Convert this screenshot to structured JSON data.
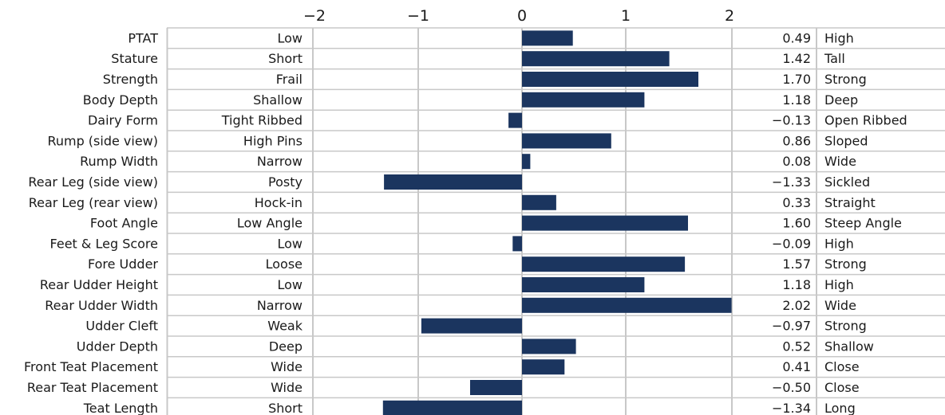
{
  "chart_data": {
    "type": "bar",
    "orientation": "horizontal",
    "xlim": [
      -2,
      2
    ],
    "x_ticks": [
      "−2",
      "−1",
      "0",
      "1",
      "2"
    ],
    "grid": true,
    "bar_color": "#1b355f",
    "grid_color": "#c8c8c8",
    "rows": [
      {
        "trait": "PTAT",
        "low": "Low",
        "value": 0.49,
        "value_label": "0.49",
        "high": "High"
      },
      {
        "trait": "Stature",
        "low": "Short",
        "value": 1.42,
        "value_label": "1.42",
        "high": "Tall"
      },
      {
        "trait": "Strength",
        "low": "Frail",
        "value": 1.7,
        "value_label": "1.70",
        "high": "Strong"
      },
      {
        "trait": "Body Depth",
        "low": "Shallow",
        "value": 1.18,
        "value_label": "1.18",
        "high": "Deep"
      },
      {
        "trait": "Dairy Form",
        "low": "Tight Ribbed",
        "value": -0.13,
        "value_label": "−0.13",
        "high": "Open Ribbed"
      },
      {
        "trait": "Rump (side view)",
        "low": "High Pins",
        "value": 0.86,
        "value_label": "0.86",
        "high": "Sloped"
      },
      {
        "trait": "Rump Width",
        "low": "Narrow",
        "value": 0.08,
        "value_label": "0.08",
        "high": "Wide"
      },
      {
        "trait": "Rear Leg (side view)",
        "low": "Posty",
        "value": -1.33,
        "value_label": "−1.33",
        "high": "Sickled"
      },
      {
        "trait": "Rear Leg (rear view)",
        "low": "Hock-in",
        "value": 0.33,
        "value_label": "0.33",
        "high": "Straight"
      },
      {
        "trait": "Foot Angle",
        "low": "Low Angle",
        "value": 1.6,
        "value_label": "1.60",
        "high": "Steep Angle"
      },
      {
        "trait": "Feet & Leg Score",
        "low": "Low",
        "value": -0.09,
        "value_label": "−0.09",
        "high": "High"
      },
      {
        "trait": "Fore Udder",
        "low": "Loose",
        "value": 1.57,
        "value_label": "1.57",
        "high": "Strong"
      },
      {
        "trait": "Rear Udder Height",
        "low": "Low",
        "value": 1.18,
        "value_label": "1.18",
        "high": "High"
      },
      {
        "trait": "Rear Udder Width",
        "low": "Narrow",
        "value": 2.02,
        "value_label": "2.02",
        "high": "Wide"
      },
      {
        "trait": "Udder Cleft",
        "low": "Weak",
        "value": -0.97,
        "value_label": "−0.97",
        "high": "Strong"
      },
      {
        "trait": "Udder Depth",
        "low": "Deep",
        "value": 0.52,
        "value_label": "0.52",
        "high": "Shallow"
      },
      {
        "trait": "Front Teat Placement",
        "low": "Wide",
        "value": 0.41,
        "value_label": "0.41",
        "high": "Close"
      },
      {
        "trait": "Rear Teat Placement",
        "low": "Wide",
        "value": -0.5,
        "value_label": "−0.50",
        "high": "Close"
      },
      {
        "trait": "Teat Length",
        "low": "Short",
        "value": -1.34,
        "value_label": "−1.34",
        "high": "Long"
      }
    ]
  }
}
